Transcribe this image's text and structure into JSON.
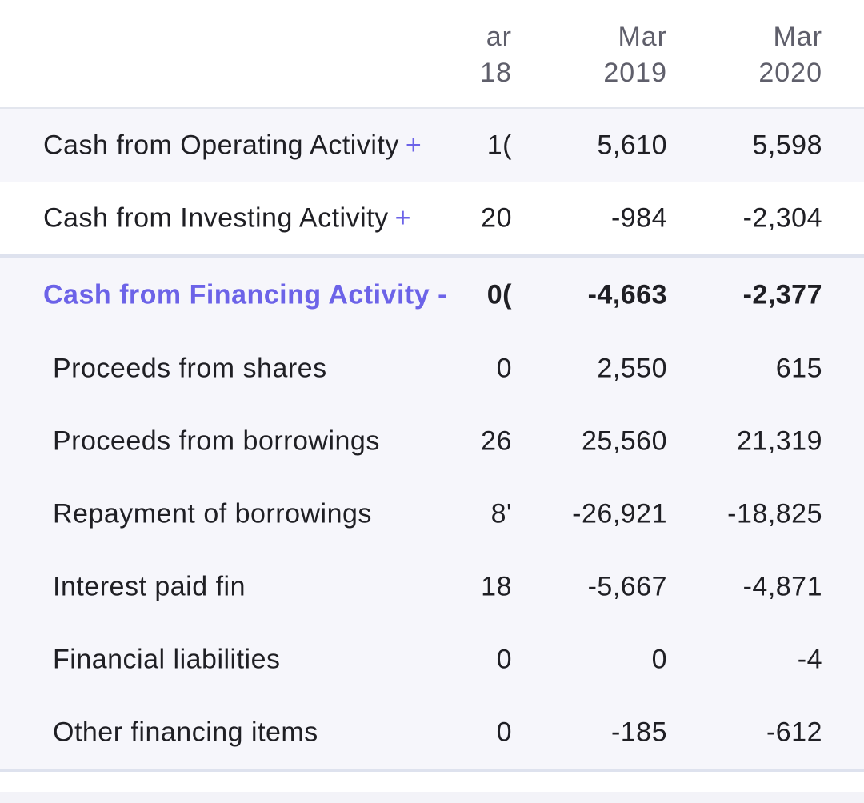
{
  "header": {
    "col1_line1": "ar",
    "col1_line2": "18",
    "col2_line1": "Mar",
    "col2_line2": "2019",
    "col3_line1": "Mar",
    "col3_line2": "2020"
  },
  "rows": {
    "operating": {
      "label": "Cash from Operating Activity",
      "toggle": "+",
      "c1": ")1",
      "c2": "5,610",
      "c3": "5,598"
    },
    "investing": {
      "label": "Cash from Investing Activity",
      "toggle": "+",
      "c1": "20",
      "c2": "-984",
      "c3": "-2,304"
    },
    "financing": {
      "label": "Cash from Financing Activity",
      "toggle": "-",
      "c1": ")0",
      "c2": "-4,663",
      "c3": "-2,377"
    },
    "shares": {
      "label": "Proceeds from shares",
      "c1": "0",
      "c2": "2,550",
      "c3": "615"
    },
    "borrowings": {
      "label": "Proceeds from borrowings",
      "c1": "26",
      "c2": "25,560",
      "c3": "21,319"
    },
    "repayment": {
      "label": "Repayment of borrowings",
      "c1": "'8",
      "c2": "-26,921",
      "c3": "-18,825"
    },
    "interest": {
      "label": "Interest paid fin",
      "c1": "18",
      "c2": "-5,667",
      "c3": "-4,871"
    },
    "liabilities": {
      "label": "Financial liabilities",
      "c1": "0",
      "c2": "0",
      "c3": "-4"
    },
    "other": {
      "label": "Other financing items",
      "c1": "0",
      "c2": "-185",
      "c3": "-612"
    }
  },
  "colors": {
    "accent": "#6c63e8",
    "row_shade": "#f6f6fb",
    "divider": "#dee2ee",
    "header_text": "#5f5f6b"
  }
}
